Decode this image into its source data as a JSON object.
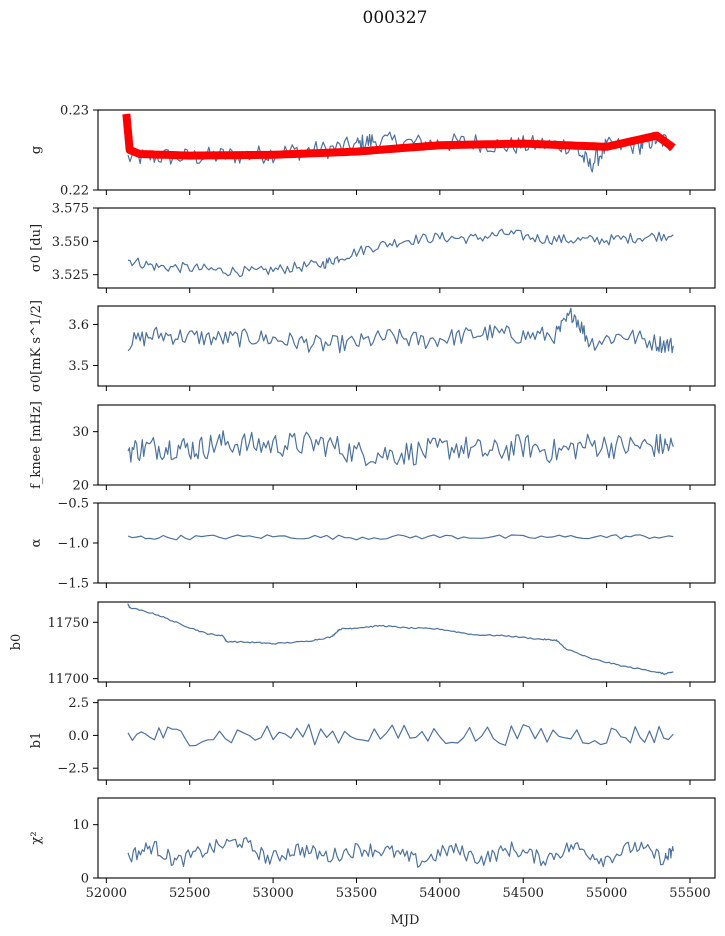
{
  "figure": {
    "title": "000327",
    "xlabel": "MJD",
    "line_color": "#4c72a0",
    "fit_color": "#ff0000"
  },
  "chart_data": [
    {
      "type": "line",
      "id": "g",
      "ylabel": "g",
      "ylim": [
        0.22,
        0.23
      ],
      "yticks": [
        "0.23",
        "0.22"
      ],
      "ytick_values": [
        0.23,
        0.22
      ],
      "xlim": [
        51950,
        55650
      ],
      "xticks": [
        52000,
        52500,
        53000,
        53500,
        54000,
        54500,
        55000,
        55500
      ],
      "series": [
        {
          "name": "g",
          "color": "#4c72a0",
          "x": [
            52130,
            52300,
            52500,
            52700,
            52900,
            53100,
            53300,
            53500,
            53600,
            53800,
            54000,
            54200,
            54400,
            54600,
            54800,
            54900,
            55000,
            55200,
            55300,
            55400
          ],
          "y": [
            0.224,
            0.2242,
            0.2241,
            0.2243,
            0.2244,
            0.2248,
            0.225,
            0.2256,
            0.2262,
            0.2259,
            0.2258,
            0.226,
            0.2255,
            0.2257,
            0.2256,
            0.223,
            0.2254,
            0.2256,
            0.2264,
            0.2258
          ]
        },
        {
          "name": "g model",
          "color": "#ff0000",
          "x": [
            52120,
            52140,
            52200,
            52500,
            53000,
            53500,
            54000,
            54500,
            55000,
            55300,
            55400
          ],
          "y": [
            0.2295,
            0.225,
            0.2245,
            0.2243,
            0.2244,
            0.2248,
            0.2256,
            0.2258,
            0.2254,
            0.2268,
            0.2253
          ]
        }
      ]
    },
    {
      "type": "line",
      "id": "sigma0_du",
      "ylabel": "σ0 [du]",
      "ylim": [
        3.515,
        3.575
      ],
      "yticks": [
        "3.575",
        "3.550",
        "3.525"
      ],
      "ytick_values": [
        3.575,
        3.55,
        3.525
      ],
      "xlim": [
        51950,
        55650
      ],
      "series": [
        {
          "name": "sigma0_du",
          "color": "#4c72a0",
          "x": [
            52130,
            52300,
            52500,
            52700,
            52900,
            53100,
            53300,
            53400,
            53600,
            53800,
            54000,
            54200,
            54400,
            54600,
            54800,
            55000,
            55200,
            55400
          ],
          "y": [
            3.536,
            3.531,
            3.53,
            3.528,
            3.527,
            3.53,
            3.533,
            3.538,
            3.546,
            3.551,
            3.553,
            3.552,
            3.556,
            3.552,
            3.551,
            3.551,
            3.553,
            3.555
          ]
        }
      ]
    },
    {
      "type": "line",
      "id": "sigma0_mK",
      "ylabel": "σ0[mK s^1/2]",
      "ylim": [
        3.45,
        3.645
      ],
      "yticks": [
        "3.6",
        "3.5"
      ],
      "ytick_values": [
        3.6,
        3.5
      ],
      "xlim": [
        51950,
        55650
      ],
      "series": [
        {
          "name": "sigma0_mK",
          "color": "#4c72a0",
          "x": [
            52130,
            52300,
            52500,
            52700,
            52900,
            53100,
            53300,
            53500,
            53700,
            53900,
            54100,
            54300,
            54500,
            54700,
            54800,
            54900,
            55100,
            55300,
            55400
          ],
          "y": [
            3.555,
            3.575,
            3.57,
            3.565,
            3.568,
            3.56,
            3.55,
            3.555,
            3.57,
            3.56,
            3.57,
            3.58,
            3.572,
            3.575,
            3.63,
            3.555,
            3.575,
            3.555,
            3.548
          ]
        }
      ]
    },
    {
      "type": "line",
      "id": "fknee",
      "ylabel": "f_knee [mHz]",
      "ylim": [
        20,
        35
      ],
      "yticks": [
        "30",
        "20"
      ],
      "ytick_values": [
        30,
        20
      ],
      "xlim": [
        51950,
        55650
      ],
      "series": [
        {
          "name": "fknee",
          "color": "#4c72a0",
          "x": [
            52130,
            52250,
            52400,
            52550,
            52700,
            52900,
            53100,
            53300,
            53500,
            53700,
            53900,
            54100,
            54300,
            54500,
            54700,
            54900,
            55100,
            55300,
            55400
          ],
          "y": [
            26.5,
            27.0,
            27.2,
            26.8,
            28.0,
            27.5,
            27.6,
            27.8,
            26.0,
            25.8,
            26.2,
            27.2,
            26.0,
            27.4,
            26.2,
            27.6,
            27.2,
            27.4,
            27.2
          ]
        }
      ]
    },
    {
      "type": "line",
      "id": "alpha",
      "ylabel": "α",
      "ylim": [
        -1.5,
        -0.5
      ],
      "yticks": [
        "-0.5",
        "-1.0",
        "-1.5"
      ],
      "ytick_values": [
        -0.5,
        -1.0,
        -1.5
      ],
      "xlim": [
        51950,
        55650
      ],
      "series": [
        {
          "name": "alpha",
          "color": "#4c72a0",
          "x": [
            52130,
            52500,
            53000,
            53500,
            54000,
            54500,
            55000,
            55400
          ],
          "y": [
            -0.93,
            -0.93,
            -0.92,
            -0.93,
            -0.92,
            -0.93,
            -0.92,
            -0.92
          ]
        }
      ]
    },
    {
      "type": "line",
      "id": "b0",
      "ylabel": "b0",
      "ylim": [
        11697,
        11768
      ],
      "yticks": [
        "11750",
        "11700"
      ],
      "ytick_values": [
        11750,
        11700
      ],
      "xlim": [
        51950,
        55650
      ],
      "series": [
        {
          "name": "b0",
          "color": "#4c72a0",
          "x": [
            52130,
            52140,
            52300,
            52450,
            52600,
            52700,
            52720,
            52900,
            53000,
            53200,
            53350,
            53400,
            53500,
            53650,
            53800,
            54000,
            54200,
            54400,
            54600,
            54700,
            54750,
            54900,
            55100,
            55300,
            55350,
            55400
          ],
          "y": [
            11766,
            11763,
            11757,
            11748,
            11740,
            11738,
            11733,
            11732,
            11731,
            11733,
            11737,
            11744,
            11745,
            11747,
            11745,
            11744,
            11739,
            11738,
            11735,
            11734,
            11727,
            11718,
            11711,
            11706,
            11704,
            11706
          ]
        }
      ]
    },
    {
      "type": "line",
      "id": "b1",
      "ylabel": "b1",
      "ylim": [
        -3.4,
        2.7
      ],
      "yticks": [
        "2.5",
        "0.0",
        "-2.5"
      ],
      "ytick_values": [
        2.5,
        0.0,
        -2.5
      ],
      "xlim": [
        51950,
        55650
      ],
      "series": [
        {
          "name": "b1",
          "color": "#4c72a0",
          "x": [
            52130,
            52500,
            53000,
            53500,
            54000,
            54500,
            55000,
            55400
          ],
          "y": [
            0.0,
            0.0,
            0.05,
            0.1,
            0.0,
            0.05,
            0.0,
            0.1
          ]
        }
      ]
    },
    {
      "type": "line",
      "id": "chi2",
      "ylabel": "χ²",
      "ylim": [
        0,
        15
      ],
      "yticks": [
        "10",
        "0"
      ],
      "ytick_values": [
        10,
        0
      ],
      "xlim": [
        51950,
        55650
      ],
      "xticks": [
        52000,
        52500,
        53000,
        53500,
        54000,
        54500,
        55000,
        55500
      ],
      "xtick_labels": [
        "52000",
        "52500",
        "53000",
        "53500",
        "54000",
        "54500",
        "55000",
        "55500"
      ],
      "series": [
        {
          "name": "chi2",
          "color": "#4c72a0",
          "x": [
            52130,
            52280,
            52420,
            52620,
            52800,
            52980,
            53150,
            53330,
            53520,
            53700,
            53880,
            54070,
            54250,
            54430,
            54620,
            54800,
            54980,
            55170,
            55350,
            55400
          ],
          "y": [
            4.0,
            6.0,
            3.0,
            5.5,
            7.0,
            3.5,
            5.5,
            4.0,
            5.5,
            5.0,
            3.0,
            5.5,
            3.5,
            5.5,
            3.5,
            6.0,
            3.5,
            6.0,
            3.5,
            5.0
          ]
        }
      ]
    }
  ]
}
